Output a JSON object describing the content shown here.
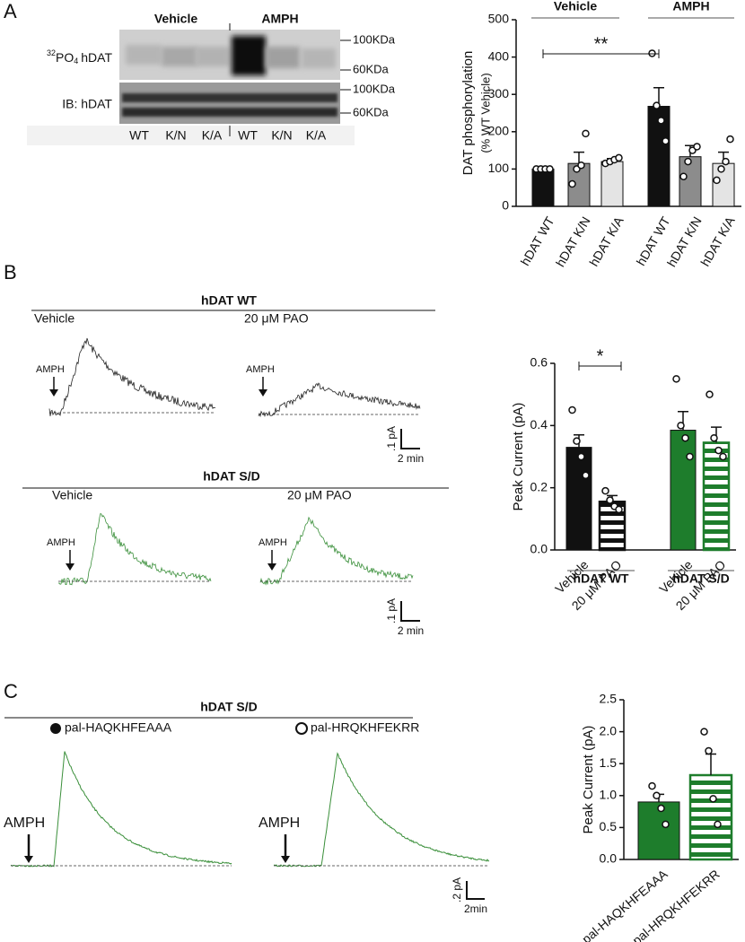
{
  "figure": {
    "panel_labels": [
      "A",
      "B",
      "C"
    ],
    "blot": {
      "groups": [
        "Vehicle",
        "AMPH"
      ],
      "row1_label": {
        "mass": "32",
        "element": "PO",
        "subscript": "4",
        "name": "hDAT"
      },
      "row2_label": "IB: hDAT",
      "lanes": [
        "WT",
        "K/N",
        "K/A",
        "WT",
        "K/N",
        "K/A"
      ],
      "markers": [
        "100KDa",
        "60KDa",
        "100KDa",
        "60KDa"
      ]
    },
    "traces": [
      {
        "title": "hDAT WT",
        "conditions": [
          "Vehicle",
          "20 μM PAO"
        ],
        "stimulus": [
          "AMPH",
          "AMPH"
        ],
        "scale": [
          ".1 pA",
          "2 min"
        ]
      },
      {
        "title": "hDAT S/D",
        "conditions": [
          "Vehicle",
          "20 μM PAO"
        ],
        "stimulus": [
          "AMPH",
          "AMPH"
        ],
        "scale": [
          ".1 pA",
          "2 min"
        ]
      },
      {
        "title": "hDAT S/D",
        "conditions": [
          "pal-HAQKHFEAAA",
          "pal-HRQKHFEKRR"
        ],
        "stimulus": [
          "AMPH",
          "AMPH"
        ],
        "scale": [
          ".2 pA",
          "2min"
        ]
      }
    ]
  },
  "chart_data": [
    {
      "type": "bar",
      "ylabel": [
        "DAT phosphorylation",
        "(% WT Vehicle)"
      ],
      "categories": [
        "hDAT WT",
        "hDAT K/N",
        "hDAT K/A",
        "hDAT WT",
        "hDAT K/N",
        "hDAT K/A"
      ],
      "groups": [
        "Vehicle",
        "AMPH"
      ],
      "values": [
        100,
        115,
        120,
        268,
        133,
        115
      ],
      "errors": [
        0,
        30,
        8,
        50,
        30,
        30
      ],
      "points": [
        [
          100,
          100,
          100,
          100
        ],
        [
          60,
          100,
          110,
          195
        ],
        [
          115,
          120,
          125,
          130
        ],
        [
          410,
          270,
          230,
          175
        ],
        [
          80,
          120,
          150,
          160
        ],
        [
          70,
          100,
          120,
          180
        ]
      ],
      "colors": [
        "#111111",
        "#8c8c8c",
        "#e4e4e4",
        "#111111",
        "#8c8c8c",
        "#e4e4e4"
      ],
      "hatched": [
        false,
        false,
        false,
        false,
        false,
        false
      ],
      "annotation": "**",
      "ylim": [
        0,
        500
      ],
      "yticks": [
        0,
        100,
        200,
        300,
        400,
        500
      ]
    },
    {
      "type": "bar",
      "ylabel": [
        "Peak Current (pA)"
      ],
      "categories": [
        "Vehicle",
        "20 μM PAO",
        "Vehicle",
        "20 μM PAO"
      ],
      "groups": [
        "hDAT WT",
        "hDAT S/D"
      ],
      "values": [
        0.33,
        0.155,
        0.385,
        0.345
      ],
      "errors": [
        0.04,
        0.02,
        0.06,
        0.05
      ],
      "points": [
        [
          0.45,
          0.35,
          0.3,
          0.24
        ],
        [
          0.19,
          0.16,
          0.14,
          0.13
        ],
        [
          0.55,
          0.4,
          0.36,
          0.3
        ],
        [
          0.5,
          0.36,
          0.32,
          0.3
        ]
      ],
      "colors": [
        "#111111",
        "#111111",
        "#1e7d2c",
        "#1e7d2c"
      ],
      "hatched": [
        false,
        true,
        false,
        true
      ],
      "annotation": "*",
      "ylim": [
        0,
        0.6
      ],
      "yticks": [
        {
          "value": 0,
          "label": "0.0"
        },
        0.2,
        0.4,
        0.6
      ]
    },
    {
      "type": "bar",
      "ylabel": [
        "Peak Current (pA)"
      ],
      "categories": [
        "pal-HAQKHFEAAA",
        "pal-HRQKHFEKRR"
      ],
      "values": [
        0.9,
        1.32
      ],
      "errors": [
        0.12,
        0.33
      ],
      "points": [
        [
          1.15,
          1.0,
          0.8,
          0.55
        ],
        [
          2.0,
          1.7,
          0.95,
          0.55
        ]
      ],
      "colors": [
        "#1e7d2c",
        "#1e7d2c"
      ],
      "hatched": [
        false,
        true
      ],
      "ylim": [
        0,
        2.5
      ],
      "yticks": [
        {
          "value": 0,
          "label": "0.0"
        },
        {
          "value": 0.5,
          "label": "0.5"
        },
        {
          "value": 1,
          "label": "1.0"
        },
        {
          "value": 1.5,
          "label": "1.5"
        },
        {
          "value": 2,
          "label": "2.0"
        },
        {
          "value": 2.5,
          "label": "2.5"
        }
      ]
    }
  ]
}
